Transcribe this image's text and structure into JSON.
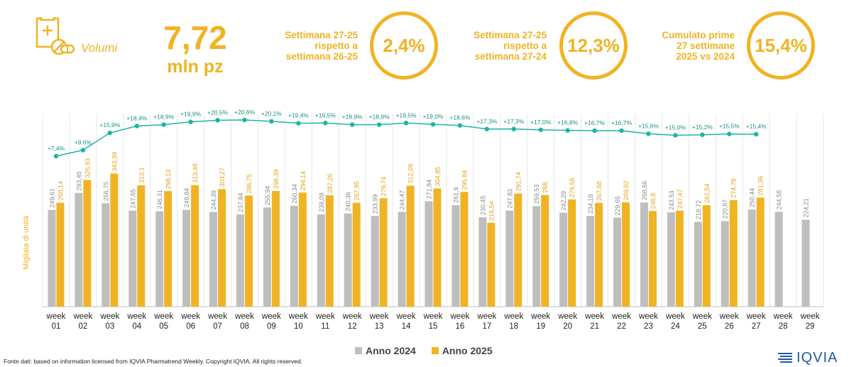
{
  "header": {
    "volume_label": "Volumi",
    "volume_icon": "pill-package-icon",
    "big_number": "7,72",
    "big_unit": "mln pz"
  },
  "kpis": [
    {
      "lines": [
        "Settimana 27-25",
        "rispetto a",
        "settimana 26-25"
      ],
      "value": "2,4%"
    },
    {
      "lines": [
        "Settimana 27-25",
        "rispetto a",
        "settimana 27-24"
      ],
      "value": "12,3%"
    },
    {
      "lines": [
        "Cumulato prime",
        "27 settimane",
        "2025 vs 2024"
      ],
      "value": "15,4%"
    }
  ],
  "colors": {
    "accent": "#F0B323",
    "series_2024": "#BEBEBE",
    "series_2025": "#F0B323",
    "growth_line": "#1BB5A6",
    "logo": "#1E5AA0"
  },
  "chart_data": {
    "type": "bar",
    "ylabel": "Migliaia di unità",
    "categories": [
      [
        "week",
        "01"
      ],
      [
        "week",
        "02"
      ],
      [
        "week",
        "03"
      ],
      [
        "week",
        "04"
      ],
      [
        "week",
        "05"
      ],
      [
        "week",
        "06"
      ],
      [
        "week",
        "07"
      ],
      [
        "week",
        "08"
      ],
      [
        "week",
        "09"
      ],
      [
        "week",
        "10"
      ],
      [
        "week",
        "11"
      ],
      [
        "week",
        "12"
      ],
      [
        "week",
        "13"
      ],
      [
        "week",
        "14"
      ],
      [
        "week",
        "15"
      ],
      [
        "week",
        "16"
      ],
      [
        "week",
        "17"
      ],
      [
        "week",
        "18"
      ],
      [
        "week",
        "19"
      ],
      [
        "week",
        "20"
      ],
      [
        "week",
        "21"
      ],
      [
        "week",
        "22"
      ],
      [
        "week",
        "23"
      ],
      [
        "week",
        "24"
      ],
      [
        "week",
        "25"
      ],
      [
        "week",
        "26"
      ],
      [
        "week",
        "27"
      ],
      [
        "week",
        "28"
      ],
      [
        "week",
        "29"
      ]
    ],
    "series": [
      {
        "name": "Anno 2024",
        "values": [
          249.61,
          293.45,
          266.75,
          247.65,
          246.31,
          249.84,
          244.39,
          237.84,
          255.94,
          260.34,
          238.09,
          240.36,
          233.99,
          244.47,
          271.84,
          261.9,
          230.45,
          247.83,
          259.53,
          242.29,
          234.18,
          229.65,
          268.66,
          243.53,
          218.72,
          220.87,
          250.44,
          244.58,
          224.21
        ],
        "labels": [
          "249,61",
          "293,45",
          "266,75",
          "247,65",
          "246,31",
          "249,84",
          "244,39",
          "237,84",
          "255,94",
          "260,34",
          "238,09",
          "240,36",
          "233,99",
          "244,47",
          "271,84",
          "261,9",
          "230,45",
          "247,83",
          "259,53",
          "242,29",
          "234,18",
          "229,65",
          "268,66",
          "243,53",
          "218,72",
          "220,87",
          "250,44",
          "244,58",
          "224,21"
        ]
      },
      {
        "name": "Anno 2025",
        "values": [
          268.14,
          326.93,
          343.39,
          313.1,
          298.13,
          313.48,
          303.27,
          286.75,
          298.39,
          294.14,
          287.26,
          267.95,
          279.74,
          312.09,
          304.85,
          295.84,
          216.54,
          291.74,
          288.0,
          276.55,
          267.68,
          269.02,
          246.8,
          247.47,
          261.54,
          274.78,
          281.36,
          null,
          null
        ],
        "labels": [
          "268,14",
          "326,93",
          "343,39",
          "313,1",
          "298,13",
          "313,48",
          "303,27",
          "286,75",
          "298,39",
          "294,14",
          "287,26",
          "267,95",
          "279,74",
          "312,09",
          "304,85",
          "295,84",
          "216,54",
          "291,74",
          "288,",
          "276,55",
          "267,68",
          "269,02",
          "246,8",
          "247,47",
          "261,54",
          "274,78",
          "281,36",
          "",
          ""
        ]
      }
    ],
    "growth": {
      "values": [
        7.4,
        9.6,
        15.9,
        18.4,
        18.9,
        19.9,
        20.5,
        20.6,
        20.1,
        19.4,
        19.5,
        18.9,
        18.9,
        19.5,
        19.0,
        18.6,
        17.3,
        17.3,
        17.0,
        16.8,
        16.7,
        16.7,
        15.6,
        15.0,
        15.2,
        15.5,
        15.4
      ],
      "labels": [
        "+7,4%",
        "+9,6%",
        "+15,9%",
        "+18,4%",
        "+18,9%",
        "+19,9%",
        "+20,5%",
        "+20,6%",
        "+20,1%",
        "+19,4%",
        "+19,5%",
        "+18,9%",
        "+18,9%",
        "+19,5%",
        "+19,0%",
        "+18,6%",
        "+17,3%",
        "+17,3%",
        "+17,0%",
        "+16,8%",
        "+16,7%",
        "+16,7%",
        "+15,6%",
        "+15,0%",
        "+15,2%",
        "+15,5%",
        "+15,4%"
      ]
    },
    "ylim": [
      0,
      520
    ],
    "legend_position": "bottom-center",
    "grid": "vertical-separators"
  },
  "source": "Fonte dati: based on information licensed from IQVIA Pharmatrend Weekly. Copyright IQVIA. All rights reserved.",
  "logo_text": "IQVIA"
}
